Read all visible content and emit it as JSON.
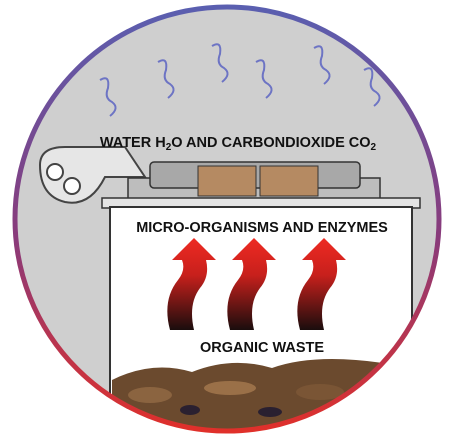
{
  "labels": {
    "top": {
      "parts": [
        "WATER H",
        "2",
        "O AND CARBONDIOXIDE CO",
        "2"
      ]
    },
    "middle": "MICRO-ORGANISMS AND ENZYMES",
    "bottom": "ORGANIC WASTE"
  }
}
